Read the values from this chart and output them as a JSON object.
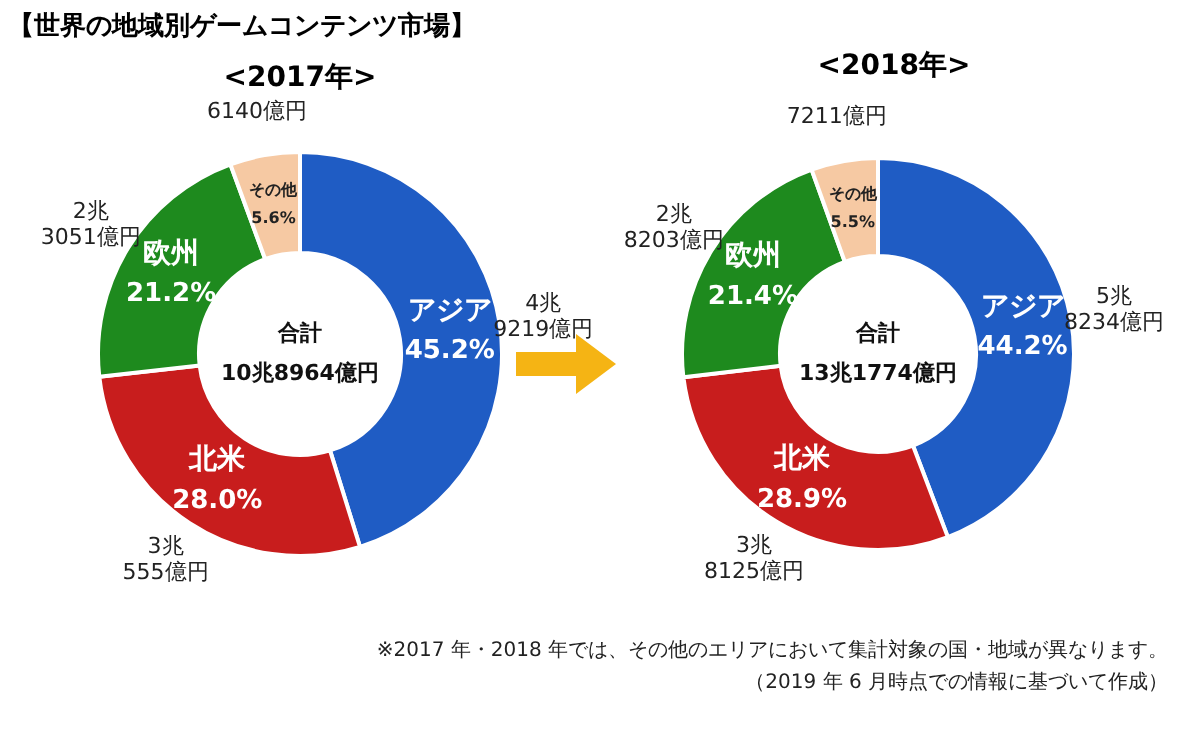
{
  "chart_data": [
    {
      "type": "donut",
      "title": "【世界の地域別ゲームコンテンツ市場】",
      "subtitle": "<2017年>",
      "categories": [
        "アジア",
        "北米",
        "欧州",
        "その他"
      ],
      "values": [
        45.2,
        28.0,
        21.2,
        5.6
      ],
      "value_labels": [
        "45.2%",
        "28.0%",
        "21.2%",
        "5.6%"
      ],
      "colors": [
        "#1f5cc4",
        "#c81d1d",
        "#1e8a1e",
        "#f6c9a3"
      ],
      "data_labels": true,
      "legend": false,
      "annotations": [
        "合計",
        "10兆8964億円",
        {
          "text": "4兆\n9219億円",
          "x": "アジア"
        },
        {
          "text": "3兆\n555億円",
          "x": "北米"
        },
        {
          "text": "2兆\n3051億円",
          "x": "欧州"
        },
        {
          "text": "6140億円",
          "x": "その他"
        }
      ]
    },
    {
      "type": "donut",
      "subtitle": "<2018年>",
      "categories": [
        "アジア",
        "北米",
        "欧州",
        "その他"
      ],
      "values": [
        44.2,
        28.9,
        21.4,
        5.5
      ],
      "value_labels": [
        "44.2%",
        "28.9%",
        "21.4%",
        "5.5%"
      ],
      "colors": [
        "#1f5cc4",
        "#c81d1d",
        "#1e8a1e",
        "#f6c9a3"
      ],
      "data_labels": true,
      "legend": false,
      "annotations": [
        "合計",
        "13兆1774億円",
        {
          "text": "5兆\n8234億円",
          "x": "アジア"
        },
        {
          "text": "3兆\n8125億円",
          "x": "北米"
        },
        {
          "text": "2兆\n8203億円",
          "x": "欧州"
        },
        {
          "text": "7211億円",
          "x": "その他"
        }
      ]
    },
    {
      "type": "other",
      "annotations": [
        "※2017 年・2018 年では、その他のエリアにおいて集計対象の国・地域が異なります。",
        "（2019 年 6 月時点での情報に基づいて作成）"
      ]
    }
  ]
}
